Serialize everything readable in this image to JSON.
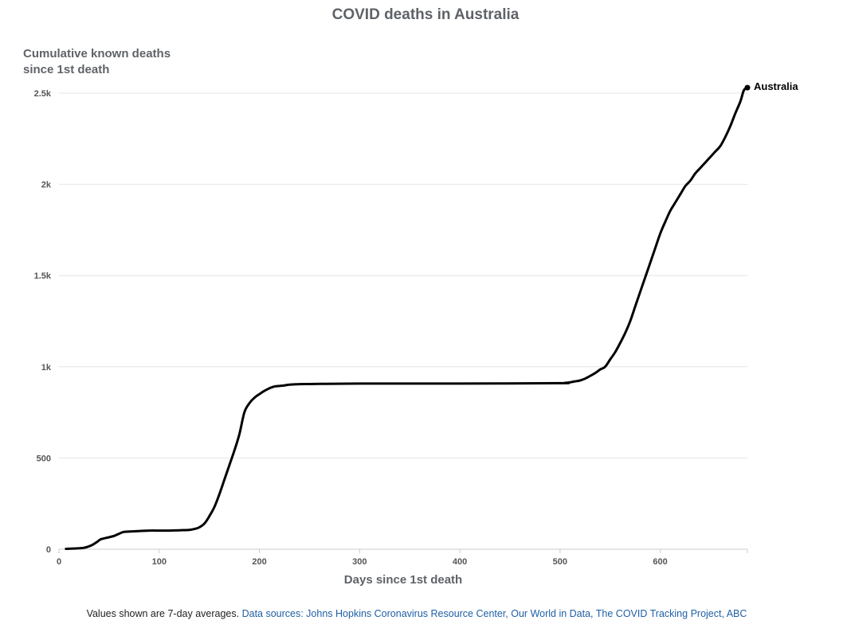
{
  "chart_data": {
    "type": "line",
    "title": "COVID deaths in Australia",
    "ylabel_line1": "Cumulative known deaths",
    "ylabel_line2": "since 1st death",
    "xlabel": "Days since 1st death",
    "xlim": [
      0,
      687
    ],
    "ylim": [
      0,
      2500
    ],
    "x_ticks": [
      0,
      100,
      200,
      300,
      400,
      500,
      600
    ],
    "x_tick_labels": [
      "0",
      "100",
      "200",
      "300",
      "400",
      "500",
      "600"
    ],
    "y_ticks": [
      0,
      500,
      1000,
      1500,
      2000,
      2500
    ],
    "y_tick_labels": [
      "0",
      "500",
      "1k",
      "1.5k",
      "2k",
      "2.5k"
    ],
    "grid": true,
    "series": [
      {
        "name": "Australia",
        "color": "#000000",
        "x": [
          7,
          15,
          25,
          32,
          38,
          42,
          50,
          55,
          60,
          65,
          75,
          90,
          100,
          110,
          120,
          130,
          136,
          140,
          145,
          150,
          155,
          160,
          165,
          170,
          175,
          180,
          185,
          190,
          195,
          200,
          205,
          210,
          215,
          220,
          225,
          230,
          240,
          260,
          300,
          400,
          500,
          505,
          510,
          515,
          520,
          525,
          530,
          535,
          540,
          545,
          550,
          555,
          560,
          565,
          570,
          575,
          580,
          585,
          590,
          595,
          600,
          605,
          610,
          615,
          620,
          625,
          630,
          635,
          640,
          645,
          650,
          655,
          660,
          665,
          670,
          675,
          680,
          683,
          685,
          687
        ],
        "y": [
          2,
          4,
          8,
          20,
          40,
          55,
          66,
          73,
          85,
          95,
          98,
          102,
          102,
          102,
          104,
          106,
          112,
          120,
          140,
          180,
          230,
          300,
          380,
          460,
          540,
          630,
          750,
          800,
          830,
          850,
          868,
          882,
          892,
          895,
          898,
          902,
          905,
          906,
          908,
          908,
          910,
          912,
          915,
          920,
          925,
          935,
          950,
          965,
          985,
          1000,
          1040,
          1080,
          1130,
          1185,
          1250,
          1330,
          1410,
          1490,
          1570,
          1650,
          1730,
          1795,
          1855,
          1900,
          1945,
          1990,
          2020,
          2060,
          2090,
          2120,
          2150,
          2180,
          2210,
          2260,
          2320,
          2390,
          2455,
          2510,
          2525,
          2530
        ]
      }
    ]
  },
  "footer": {
    "note": "Values shown are 7-day averages.",
    "sources": "Data sources: Johns Hopkins Coronavirus Resource Center, Our World in Data, The COVID Tracking Project, ABC"
  }
}
